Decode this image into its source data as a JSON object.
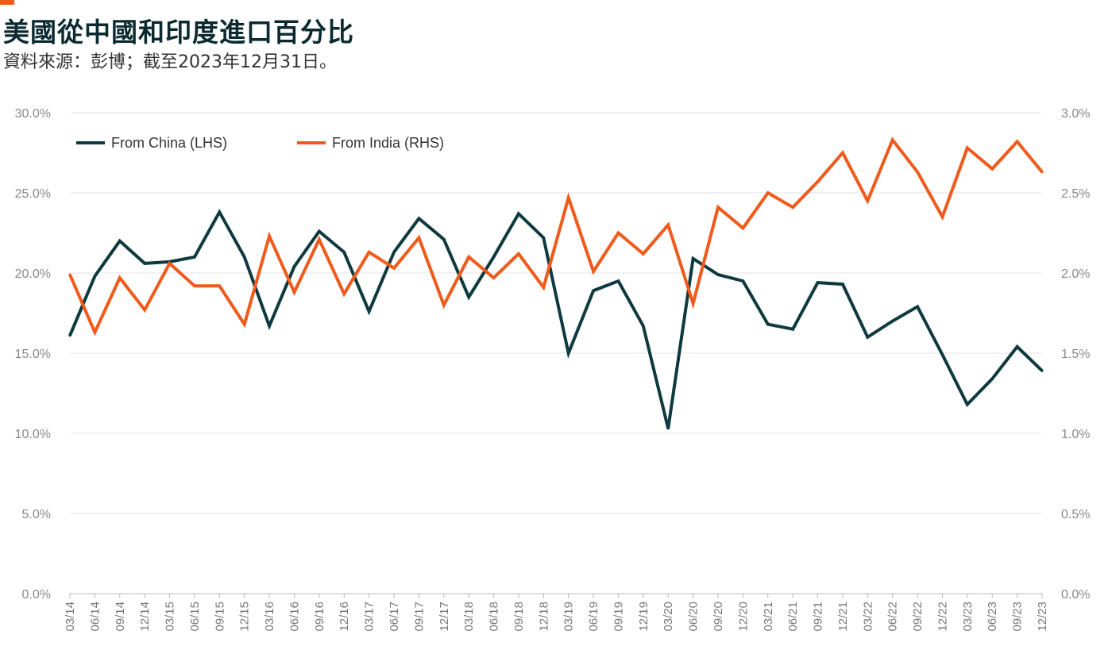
{
  "header": {
    "title": "美國從中國和印度進口百分比",
    "subtitle": "資料來源：彭博；截至2023年12月31日。"
  },
  "colors": {
    "china": "#0f3a40",
    "india": "#f05a1a",
    "accent": "#f05a1a"
  },
  "chart_data": {
    "type": "line",
    "title": "美國從中國和印度進口百分比",
    "x": [
      "03/14",
      "06/14",
      "09/14",
      "12/14",
      "03/15",
      "06/15",
      "09/15",
      "12/15",
      "03/16",
      "06/16",
      "09/16",
      "12/16",
      "03/17",
      "06/17",
      "09/17",
      "12/17",
      "03/18",
      "06/18",
      "09/18",
      "12/18",
      "03/19",
      "06/19",
      "09/19",
      "12/19",
      "03/20",
      "06/20",
      "09/20",
      "12/20",
      "03/21",
      "06/21",
      "09/21",
      "12/21",
      "03/22",
      "06/22",
      "09/22",
      "12/22",
      "03/23",
      "06/23",
      "09/23",
      "12/23"
    ],
    "y_left": {
      "ylim": [
        0,
        30
      ],
      "ticks": [
        "0.0%",
        "5.0%",
        "10.0%",
        "15.0%",
        "20.0%",
        "25.0%",
        "30.0%"
      ]
    },
    "y_right": {
      "ylim": [
        0,
        3
      ],
      "ticks": [
        "0.0%",
        "0.5%",
        "1.0%",
        "1.5%",
        "2.0%",
        "2.5%",
        "3.0%"
      ]
    },
    "grid": true,
    "legend_position": "top-left",
    "series": [
      {
        "name": "From China (LHS)",
        "axis": "left",
        "values": [
          16.1,
          19.8,
          22.0,
          20.6,
          20.7,
          21.0,
          23.8,
          21.0,
          16.7,
          20.4,
          22.6,
          21.3,
          17.6,
          21.3,
          23.4,
          22.1,
          18.5,
          21.0,
          23.7,
          22.2,
          15.0,
          18.9,
          19.5,
          16.7,
          10.3,
          20.9,
          19.9,
          19.5,
          16.8,
          16.5,
          19.4,
          19.3,
          16.0,
          17.0,
          17.9,
          14.9,
          11.8,
          13.4,
          15.4,
          13.9
        ]
      },
      {
        "name": "From India (RHS)",
        "axis": "right",
        "values": [
          1.99,
          1.63,
          1.97,
          1.77,
          2.06,
          1.92,
          1.92,
          1.68,
          2.23,
          1.88,
          2.21,
          1.87,
          2.13,
          2.03,
          2.22,
          1.8,
          2.1,
          1.97,
          2.12,
          1.91,
          2.47,
          2.01,
          2.25,
          2.12,
          2.3,
          1.81,
          2.41,
          2.28,
          2.5,
          2.41,
          2.57,
          2.75,
          2.45,
          2.83,
          2.63,
          2.35,
          2.78,
          2.65,
          2.82,
          2.63
        ]
      }
    ]
  }
}
